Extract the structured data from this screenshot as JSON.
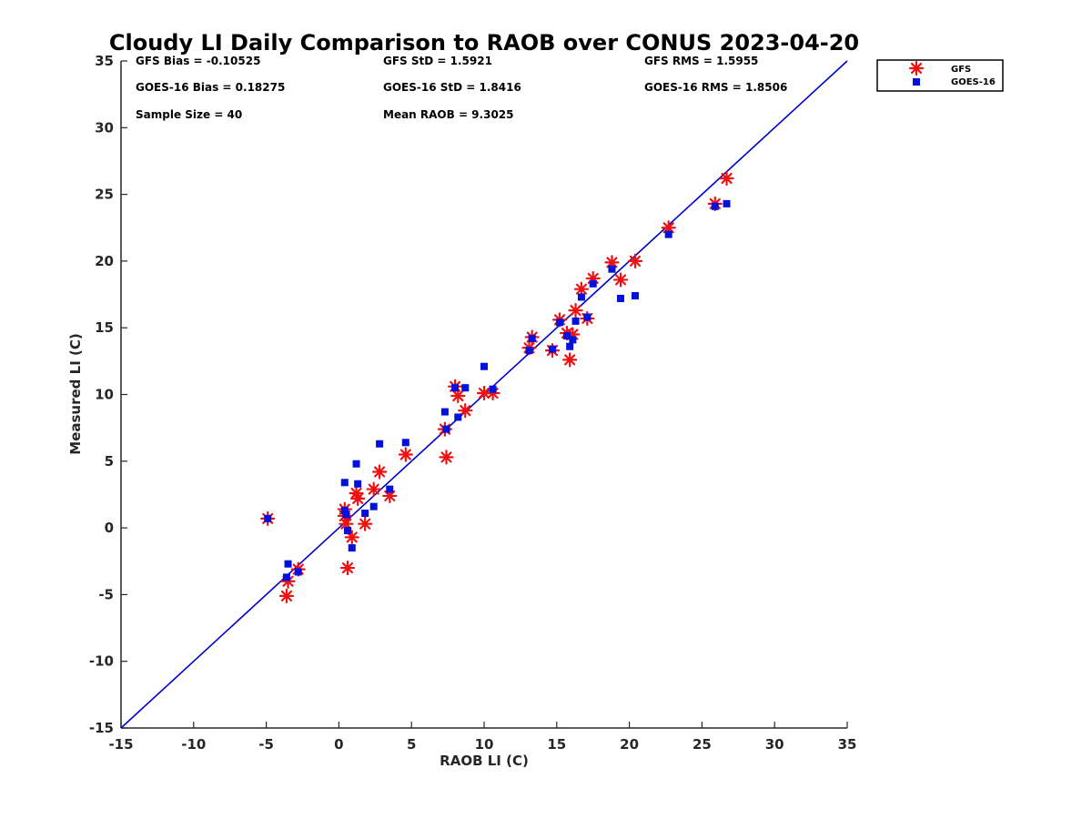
{
  "chart_data": {
    "type": "scatter",
    "title": "Cloudy LI Daily Comparison to RAOB over CONUS 2023-04-20",
    "xlabel": "RAOB LI (C)",
    "ylabel": "Measured LI (C)",
    "xlim": [
      -15,
      35
    ],
    "ylim": [
      -15,
      35
    ],
    "xticks": [
      "-15",
      "-10",
      "-5",
      "0",
      "5",
      "10",
      "15",
      "20",
      "25",
      "30",
      "35"
    ],
    "yticks": [
      "-15",
      "-10",
      "-5",
      "0",
      "5",
      "10",
      "15",
      "20",
      "25",
      "30",
      "35"
    ],
    "grid": false,
    "legend_position": "outside-top-right",
    "reference_line": {
      "x": [
        -15,
        35
      ],
      "y": [
        -15,
        35
      ],
      "color": "#0000cc"
    },
    "stats": [
      [
        "GFS Bias = -0.10525",
        "GFS StD = 1.5921",
        "GFS RMS = 1.5955"
      ],
      [
        "GOES-16 Bias = 0.18275",
        "GOES-16 StD = 1.8416",
        "GOES-16 RMS = 1.8506"
      ],
      [
        "Sample Size = 40",
        "Mean RAOB = 9.3025",
        ""
      ]
    ],
    "series": [
      {
        "name": "GFS",
        "marker": "asterisk",
        "color": "#ee1111",
        "points": [
          [
            -4.9,
            0.7
          ],
          [
            -3.6,
            -5.1
          ],
          [
            -3.5,
            -4.0
          ],
          [
            -2.8,
            -3.1
          ],
          [
            0.4,
            1.4
          ],
          [
            0.4,
            0.9
          ],
          [
            0.5,
            0.3
          ],
          [
            0.6,
            -3.0
          ],
          [
            0.9,
            -0.7
          ],
          [
            1.2,
            2.6
          ],
          [
            1.3,
            2.2
          ],
          [
            1.8,
            0.3
          ],
          [
            2.4,
            2.9
          ],
          [
            2.8,
            4.2
          ],
          [
            3.5,
            2.4
          ],
          [
            4.6,
            5.5
          ],
          [
            7.3,
            7.4
          ],
          [
            7.4,
            5.3
          ],
          [
            8.0,
            10.6
          ],
          [
            8.2,
            9.9
          ],
          [
            8.7,
            8.8
          ],
          [
            10.0,
            10.1
          ],
          [
            10.6,
            10.1
          ],
          [
            13.1,
            13.5
          ],
          [
            13.3,
            14.3
          ],
          [
            14.7,
            13.3
          ],
          [
            15.2,
            15.6
          ],
          [
            15.7,
            14.6
          ],
          [
            15.9,
            12.6
          ],
          [
            16.1,
            14.5
          ],
          [
            16.3,
            16.3
          ],
          [
            16.7,
            17.9
          ],
          [
            17.1,
            15.7
          ],
          [
            17.5,
            18.7
          ],
          [
            18.8,
            19.9
          ],
          [
            19.4,
            18.6
          ],
          [
            20.4,
            20.0
          ],
          [
            22.7,
            22.5
          ],
          [
            25.9,
            24.3
          ],
          [
            26.7,
            26.2
          ]
        ]
      },
      {
        "name": "GOES-16",
        "marker": "square",
        "color": "#0011dd",
        "points": [
          [
            -4.9,
            0.7
          ],
          [
            -3.6,
            -3.7
          ],
          [
            -3.5,
            -2.7
          ],
          [
            -2.8,
            -3.3
          ],
          [
            0.4,
            3.4
          ],
          [
            0.4,
            1.3
          ],
          [
            0.5,
            1.0
          ],
          [
            0.6,
            -0.2
          ],
          [
            0.9,
            -1.5
          ],
          [
            1.2,
            4.8
          ],
          [
            1.3,
            3.3
          ],
          [
            1.8,
            1.1
          ],
          [
            2.4,
            1.6
          ],
          [
            2.8,
            6.3
          ],
          [
            3.5,
            2.9
          ],
          [
            4.6,
            6.4
          ],
          [
            7.3,
            8.7
          ],
          [
            7.4,
            7.4
          ],
          [
            8.0,
            10.5
          ],
          [
            8.2,
            8.3
          ],
          [
            8.7,
            10.5
          ],
          [
            10.0,
            12.1
          ],
          [
            10.6,
            10.4
          ],
          [
            13.1,
            13.3
          ],
          [
            13.3,
            14.2
          ],
          [
            14.7,
            13.4
          ],
          [
            15.2,
            15.4
          ],
          [
            15.7,
            14.4
          ],
          [
            15.9,
            13.6
          ],
          [
            16.1,
            14.1
          ],
          [
            16.3,
            15.5
          ],
          [
            16.7,
            17.3
          ],
          [
            17.1,
            15.8
          ],
          [
            17.5,
            18.3
          ],
          [
            18.8,
            19.4
          ],
          [
            19.4,
            17.2
          ],
          [
            20.4,
            17.4
          ],
          [
            22.7,
            22.0
          ],
          [
            25.9,
            24.1
          ],
          [
            26.7,
            24.3
          ]
        ]
      }
    ]
  }
}
